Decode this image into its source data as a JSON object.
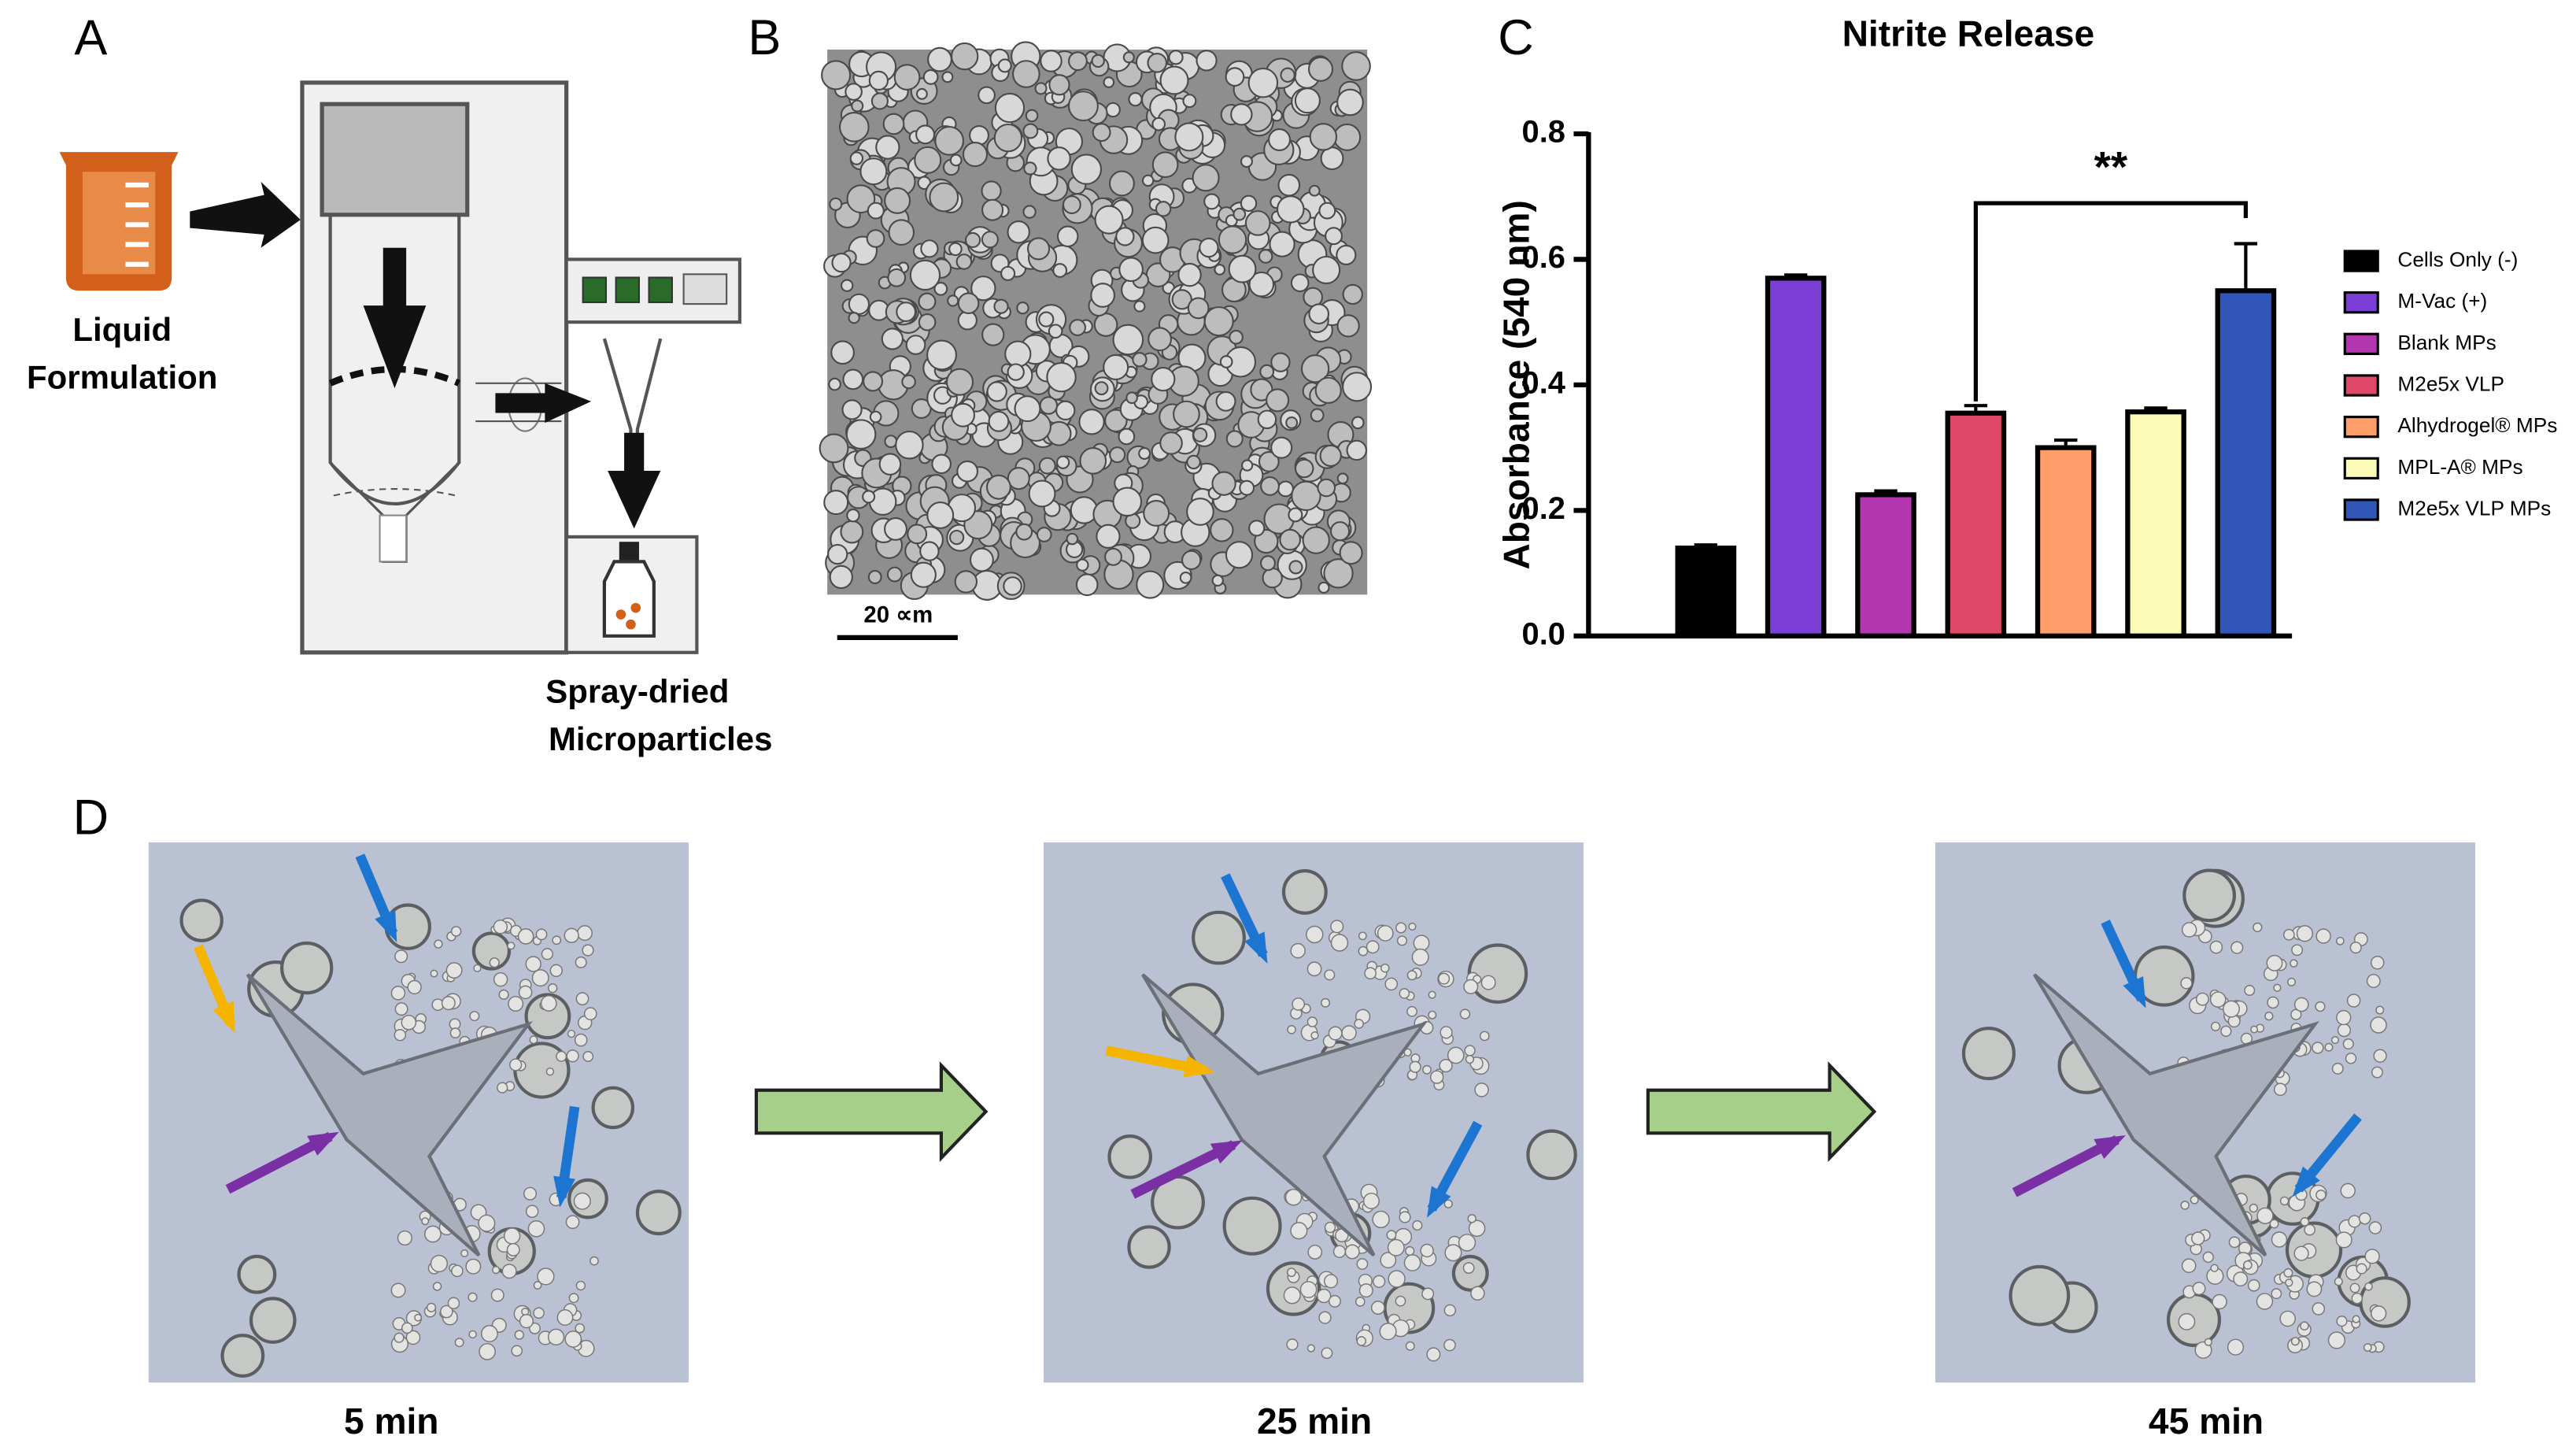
{
  "panel_labels": [
    "A",
    "B",
    "C",
    "D"
  ],
  "panel_a": {
    "input_label": [
      "Liquid",
      "Formulation"
    ],
    "output_label": [
      "Spray-dried",
      "Microparticles"
    ]
  },
  "panel_b": {
    "scale_bar": "20 ∝m"
  },
  "chart_data": {
    "type": "bar",
    "title": "Nitrite Release",
    "y_label": "Absorbance (540 nm)",
    "categories": [
      "Cells Only (-)",
      "M-Vac (+)",
      "Blank MPs",
      "M2e5x VLP",
      "Alhydrogel® MPs",
      "MPL-A® MPs",
      "M2e5x VLP MPs"
    ],
    "values": [
      0.14,
      0.57,
      0.225,
      0.355,
      0.3,
      0.357,
      0.55
    ],
    "errors": [
      0.005,
      0.005,
      0.006,
      0.012,
      0.012,
      0.006,
      0.075
    ],
    "colors": [
      "#000000",
      "#7b3fd6",
      "#b335b0",
      "#e0486a",
      "#ff9e6b",
      "#fdfbb8",
      "#2f56b8"
    ],
    "ylim": [
      0,
      0.8
    ],
    "yticks": [
      {
        "value": 0,
        "label": "0.0"
      },
      0.2,
      0.4,
      0.6,
      0.8
    ],
    "annotation": "**",
    "legend": "right"
  },
  "panel_d": {
    "time_labels": [
      "5 min",
      "25 min",
      "45 min"
    ]
  }
}
